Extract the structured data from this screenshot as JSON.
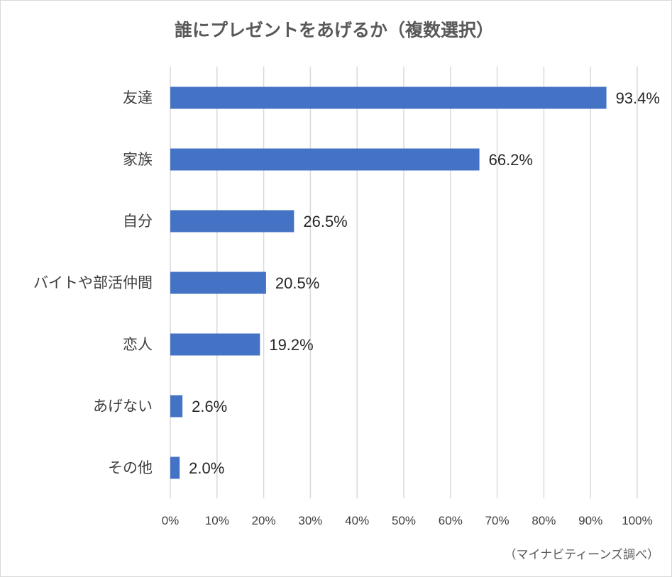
{
  "chart_data": {
    "type": "bar",
    "orientation": "horizontal",
    "title": "誰にプレゼントをあげるか（複数選択）",
    "categories": [
      "友達",
      "家族",
      "自分",
      "バイトや部活仲間",
      "恋人",
      "あげない",
      "その他"
    ],
    "values": [
      93.4,
      66.2,
      26.5,
      20.5,
      19.2,
      2.6,
      2.0
    ],
    "data_labels": [
      "93.4%",
      "66.2%",
      "26.5%",
      "20.5%",
      "19.2%",
      "2.6%",
      "2.0%"
    ],
    "x_ticks": [
      "0%",
      "10%",
      "20%",
      "30%",
      "40%",
      "50%",
      "60%",
      "70%",
      "80%",
      "90%",
      "100%"
    ],
    "xlim": [
      0,
      100
    ],
    "grid": true,
    "legend": "none",
    "bar_color": "#4472C4",
    "grid_color": "#D9D9D9"
  },
  "source_note": "（マイナビティーンズ調べ）"
}
